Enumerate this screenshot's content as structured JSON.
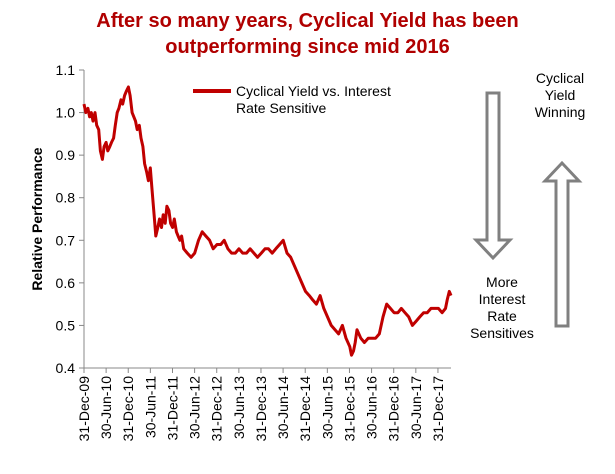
{
  "chart_data": {
    "type": "line",
    "title": "After so many years, Cyclical Yield has been outperforming since mid 2016",
    "title_lines": [
      "After so many years, Cyclical Yield has been",
      "outperforming since mid 2016"
    ],
    "ylabel": "Relative Performance",
    "xlabel": "",
    "ylim": [
      0.4,
      1.1
    ],
    "yticks": [
      0.4,
      0.5,
      0.6,
      0.7,
      0.8,
      0.9,
      1.0,
      1.1
    ],
    "ytick_labels": [
      "0.4",
      "0.5",
      "0.6",
      "0.7",
      "0.8",
      "0.9",
      "1.0",
      "1.1"
    ],
    "xticks": [
      "31-Dec-09",
      "30-Jun-10",
      "31-Dec-10",
      "30-Jun-11",
      "31-Dec-11",
      "30-Jun-12",
      "31-Dec-12",
      "30-Jun-13",
      "31-Dec-13",
      "30-Jun-14",
      "31-Dec-14",
      "30-Jun-15",
      "31-Dec-15",
      "30-Jun-16",
      "31-Dec-16",
      "30-Jun-17",
      "31-Dec-17"
    ],
    "grid": false,
    "legend_position": "top-center",
    "series": [
      {
        "name": "Cyclical Yield vs. Interest Rate Sensitive",
        "color": "#c00000",
        "x": [
          "2009-12-31",
          "2010-01-15",
          "2010-02-01",
          "2010-02-15",
          "2010-03-01",
          "2010-03-15",
          "2010-04-01",
          "2010-04-15",
          "2010-05-01",
          "2010-05-15",
          "2010-06-01",
          "2010-06-15",
          "2010-07-01",
          "2010-07-15",
          "2010-08-01",
          "2010-08-15",
          "2010-09-01",
          "2010-09-15",
          "2010-10-01",
          "2010-10-15",
          "2010-11-01",
          "2010-11-15",
          "2010-12-01",
          "2010-12-15",
          "2011-01-01",
          "2011-01-15",
          "2011-02-01",
          "2011-02-15",
          "2011-03-01",
          "2011-03-15",
          "2011-04-01",
          "2011-04-15",
          "2011-05-01",
          "2011-05-15",
          "2011-06-01",
          "2011-06-15",
          "2011-07-01",
          "2011-07-15",
          "2011-08-01",
          "2011-08-15",
          "2011-09-01",
          "2011-09-15",
          "2011-10-01",
          "2011-10-15",
          "2011-11-01",
          "2011-11-15",
          "2011-12-01",
          "2011-12-15",
          "2012-01-01",
          "2012-01-15",
          "2012-02-01",
          "2012-02-15",
          "2012-03-01",
          "2012-03-15",
          "2012-04-01",
          "2012-05-01",
          "2012-06-01",
          "2012-07-01",
          "2012-08-01",
          "2012-09-01",
          "2012-10-01",
          "2012-11-01",
          "2012-12-01",
          "2013-01-01",
          "2013-02-01",
          "2013-03-01",
          "2013-04-01",
          "2013-05-01",
          "2013-06-01",
          "2013-07-01",
          "2013-08-01",
          "2013-09-01",
          "2013-10-01",
          "2013-11-01",
          "2013-12-01",
          "2014-01-01",
          "2014-02-01",
          "2014-03-01",
          "2014-04-01",
          "2014-05-01",
          "2014-06-01",
          "2014-07-01",
          "2014-08-01",
          "2014-09-01",
          "2014-10-01",
          "2014-11-01",
          "2014-12-01",
          "2015-01-01",
          "2015-02-01",
          "2015-03-01",
          "2015-04-01",
          "2015-05-01",
          "2015-06-01",
          "2015-07-01",
          "2015-08-01",
          "2015-09-01",
          "2015-10-01",
          "2015-11-01",
          "2015-12-01",
          "2016-01-01",
          "2016-01-15",
          "2016-02-01",
          "2016-02-15",
          "2016-03-01",
          "2016-04-01",
          "2016-05-01",
          "2016-06-01",
          "2016-07-01",
          "2016-08-01",
          "2016-09-01",
          "2016-10-01",
          "2016-11-01",
          "2016-12-01",
          "2017-01-01",
          "2017-02-01",
          "2017-03-01",
          "2017-04-01",
          "2017-05-01",
          "2017-06-01",
          "2017-07-01",
          "2017-08-01",
          "2017-09-01",
          "2017-10-01",
          "2017-11-01",
          "2017-12-01",
          "2018-01-01",
          "2018-02-01",
          "2018-03-01",
          "2018-03-15",
          "2018-04-01",
          "2018-04-15"
        ],
        "values": [
          1.02,
          1.0,
          1.01,
          0.99,
          1.0,
          0.98,
          1.0,
          0.97,
          0.96,
          0.91,
          0.89,
          0.92,
          0.93,
          0.91,
          0.92,
          0.93,
          0.94,
          0.97,
          1.0,
          1.01,
          1.03,
          1.02,
          1.04,
          1.05,
          1.06,
          1.04,
          1.0,
          0.99,
          0.98,
          0.96,
          0.97,
          0.94,
          0.92,
          0.88,
          0.86,
          0.84,
          0.87,
          0.82,
          0.76,
          0.71,
          0.73,
          0.75,
          0.73,
          0.76,
          0.74,
          0.78,
          0.77,
          0.74,
          0.73,
          0.75,
          0.72,
          0.71,
          0.7,
          0.71,
          0.68,
          0.67,
          0.66,
          0.67,
          0.7,
          0.72,
          0.71,
          0.7,
          0.68,
          0.69,
          0.69,
          0.7,
          0.68,
          0.67,
          0.67,
          0.68,
          0.67,
          0.67,
          0.68,
          0.67,
          0.66,
          0.67,
          0.68,
          0.68,
          0.67,
          0.68,
          0.69,
          0.7,
          0.67,
          0.66,
          0.64,
          0.62,
          0.6,
          0.58,
          0.57,
          0.56,
          0.55,
          0.57,
          0.54,
          0.52,
          0.5,
          0.49,
          0.48,
          0.5,
          0.47,
          0.45,
          0.43,
          0.44,
          0.46,
          0.49,
          0.47,
          0.46,
          0.47,
          0.47,
          0.47,
          0.48,
          0.52,
          0.55,
          0.54,
          0.53,
          0.53,
          0.54,
          0.53,
          0.52,
          0.5,
          0.51,
          0.52,
          0.53,
          0.53,
          0.54,
          0.54,
          0.54,
          0.53,
          0.54,
          0.56,
          0.58,
          0.57
        ]
      }
    ]
  },
  "annotations": {
    "winning": [
      "Cyclical",
      "Yield",
      "Winning"
    ],
    "sensitives": [
      "More",
      "Interest",
      "Rate",
      "Sensitives"
    ],
    "arrow_color": "#808080"
  }
}
